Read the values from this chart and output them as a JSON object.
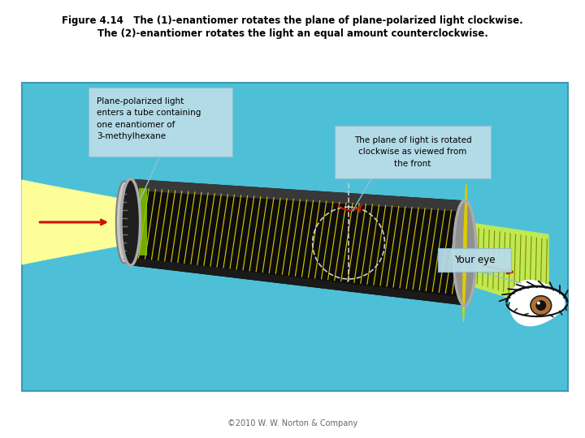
{
  "title_line1": "Figure 4.14   The (1)-enantiomer rotates the plane of plane-polarized light clockwise.",
  "title_line2": "The (2)-enantiomer rotates the light an equal amount counterclockwise.",
  "copyright": "©2010 W. W. Norton & Company",
  "bg_color": "#ffffff",
  "diagram_bg": "#4dc0d8",
  "diagram_border": "#3a9ab0",
  "tube_color": "#111111",
  "label1_text": "Plane-polarized light\nenters a tube containing\none enantiomer of\n3-methylhexane",
  "label1_bg": "#b8dce8",
  "label2_text": "The plane of light is rotated\nclockwise as viewed from\nthe front",
  "label2_bg": "#b8dce8",
  "label3_text": "Your eye",
  "label3_bg": "#b8dce8",
  "arrow_color": "#cc1100",
  "light_in_color": "#ffff99",
  "light_out_color": "#ccee44",
  "grid_line_color": "#ddcc00",
  "polarizer_color": "#c8c8c8",
  "dashed_color": "#cccccc",
  "green_lines_color": "#88cc00"
}
